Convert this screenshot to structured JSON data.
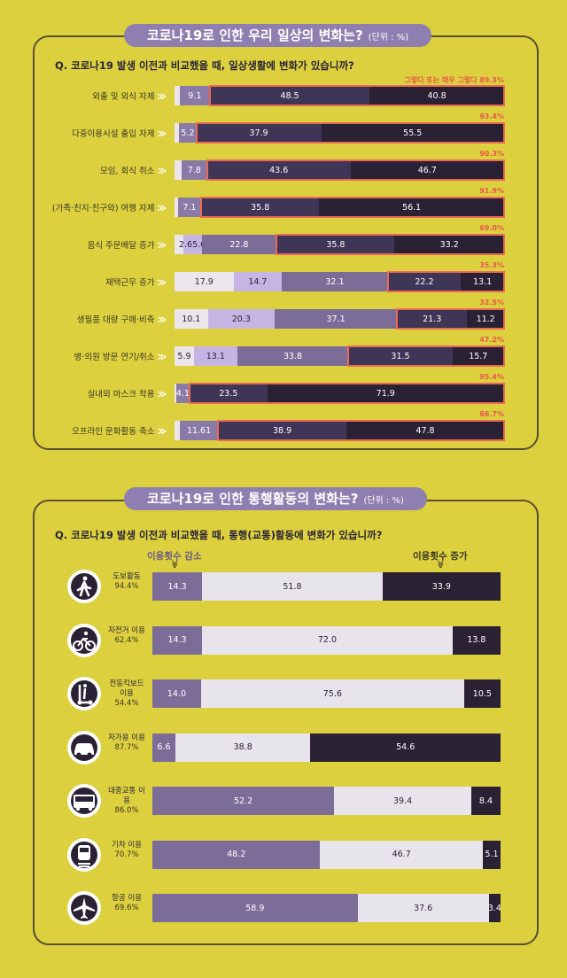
{
  "section1": {
    "title": "코로나19로 인한 우리 일상의 변화는?",
    "unit": "(단위 : %)",
    "question": "Q. 코로나19 발생 이전과 비교했을 때, 일상생활에 변화가 있습니까?",
    "legend_note": "그렇다 또는 매우 그렇다",
    "colors": {
      "s0": "#eae6ec",
      "s1": "#c6b5e4",
      "s2": "#7b6d97",
      "s3": "#3f3556",
      "s4": "#2a2135",
      "highlight": "#ea6a55"
    }
  },
  "section2": {
    "title": "코로나19로 인한 통행활동의 변화는?",
    "unit": "(단위 : %)",
    "question": "Q. 코로나19 발생 이전과 비교했을 때, 통행(교통)활동에 변화가 있습니까?",
    "decrease_label": "이용횟수 감소",
    "increase_label": "이용횟수 증가",
    "arrow": "≫"
  },
  "chart_data": [
    {
      "type": "bar",
      "title": "코로나19로 인한 우리 일상의 변화는?",
      "categories": [
        "외출 및 외식 자제",
        "다중이용시설 출입 자제",
        "모임, 회식 취소",
        "(가족·친지·친구와) 여행 자제",
        "음식 주문배달 증가",
        "재택근무 증가",
        "생필품 대량 구매·비축",
        "병·의원 방문 연기/취소",
        "실내외 마스크 착용",
        "오프라인 문화활동 축소"
      ],
      "rows": [
        {
          "segments": [
            1.6,
            9.1,
            48.5,
            40.8
          ],
          "labels": [
            "",
            "9.1",
            "48.5",
            "40.8"
          ],
          "start": 0,
          "hl_from": 2,
          "pct": "89.3%",
          "pct_prefix": "그렇다 또는 매우 그렇다"
        },
        {
          "segments": [
            1.4,
            5.2,
            37.9,
            55.5
          ],
          "labels": [
            "",
            "5.2",
            "37.9",
            "55.5"
          ],
          "start": 0,
          "hl_from": 2,
          "pct": "93.4%"
        },
        {
          "segments": [
            2.1,
            7.8,
            43.6,
            46.7
          ],
          "labels": [
            "",
            "7.8",
            "43.6",
            "46.7"
          ],
          "start": 0,
          "hl_from": 2,
          "pct": "90.3%"
        },
        {
          "segments": [
            1.0,
            7.1,
            35.8,
            56.1
          ],
          "labels": [
            "",
            "7.1",
            "35.8",
            "56.1"
          ],
          "start": 0,
          "hl_from": 2,
          "pct": "91.9%"
        },
        {
          "segments": [
            2.6,
            5.6,
            22.8,
            35.8,
            33.2
          ],
          "labels": [
            "2.6",
            "5.6",
            "22.8",
            "35.8",
            "33.2"
          ],
          "start": 0,
          "hl_from": 3,
          "pct": "69.0%",
          "merged_label": "2.65.6"
        },
        {
          "segments": [
            17.9,
            14.7,
            32.1,
            22.2,
            13.1
          ],
          "labels": [
            "17.9",
            "14.7",
            "32.1",
            "22.2",
            "13.1"
          ],
          "start": 0,
          "hl_from": 3,
          "pct": "35.3%"
        },
        {
          "segments": [
            10.1,
            20.3,
            37.1,
            21.3,
            11.2
          ],
          "labels": [
            "10.1",
            "20.3",
            "37.1",
            "21.3",
            "11.2"
          ],
          "start": 0,
          "hl_from": 3,
          "pct": "32.5%"
        },
        {
          "segments": [
            5.9,
            13.1,
            33.8,
            31.5,
            15.7
          ],
          "labels": [
            "5.9",
            "13.1",
            "33.8",
            "31.5",
            "15.7"
          ],
          "start": 0,
          "hl_from": 3,
          "pct": "47.2%"
        },
        {
          "segments": [
            0.5,
            4.1,
            23.5,
            71.9
          ],
          "labels": [
            "",
            "4.1",
            "23.5",
            "71.9"
          ],
          "start": 0,
          "hl_from": 2,
          "pct": "95.4%"
        },
        {
          "segments": [
            1.6,
            11.6,
            38.9,
            47.8
          ],
          "labels": [
            "",
            "11.6",
            "38.9",
            "47.8"
          ],
          "start": 0,
          "hl_from": 2,
          "pct": "86.7%",
          "merged_label": "11.61"
        }
      ]
    },
    {
      "type": "bar",
      "title": "코로나19로 인한 통행활동의 변화는?",
      "series": [
        {
          "name": "이용횟수 감소",
          "values": [
            14.3,
            14.3,
            14.0,
            6.6,
            52.2,
            48.2,
            58.9
          ]
        },
        {
          "name": "",
          "values": [
            51.8,
            72.0,
            75.6,
            38.8,
            39.4,
            46.7,
            37.6
          ]
        },
        {
          "name": "이용횟수 증가",
          "values": [
            33.9,
            13.8,
            10.5,
            54.6,
            8.4,
            5.1,
            3.4
          ]
        }
      ],
      "rows": [
        {
          "name": "도보활동",
          "share": "94.4%",
          "icon": "walking-icon",
          "labels": [
            "14.3",
            "51.8",
            "33.9"
          ]
        },
        {
          "name": "자전거 이용",
          "share": "62.4%",
          "icon": "bicycle-icon",
          "labels": [
            "14.3",
            "72.0",
            "13.8"
          ]
        },
        {
          "name": "전동킥보드 이용",
          "share": "54.4%",
          "icon": "kickboard-icon",
          "labels": [
            "14.0",
            "75.6",
            "10.5"
          ]
        },
        {
          "name": "자가용 이용",
          "share": "87.7%",
          "icon": "car-icon",
          "labels": [
            "6.6",
            "38.8",
            "54.6"
          ]
        },
        {
          "name": "대중교통 이용",
          "share": "86.0%",
          "icon": "bus-icon",
          "labels": [
            "52.2",
            "39.4",
            "8.4"
          ]
        },
        {
          "name": "기차 이용",
          "share": "70.7%",
          "icon": "train-icon",
          "labels": [
            "48.2",
            "46.7",
            "5.1"
          ]
        },
        {
          "name": "항공 이용",
          "share": "69.6%",
          "icon": "airplane-icon",
          "labels": [
            "58.9",
            "37.6",
            "3.4"
          ]
        }
      ],
      "icon_color": "#2a2135"
    }
  ]
}
